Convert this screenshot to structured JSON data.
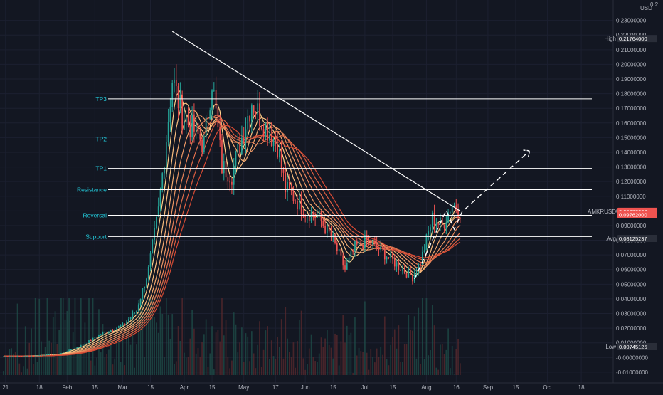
{
  "chart_data": {
    "type": "candlestick",
    "title": "",
    "symbol": "AMKRUSD",
    "currency_label": "USD",
    "y_axis_top_label": "0.2",
    "ylim": [
      -0.012,
      0.241
    ],
    "yticks": [
      -0.01,
      -0.0,
      0.01,
      0.02,
      0.03,
      0.04,
      0.05,
      0.06,
      0.07,
      0.08,
      0.09,
      0.1,
      0.11,
      0.12,
      0.13,
      0.14,
      0.15,
      0.16,
      0.17,
      0.18,
      0.19,
      0.2,
      0.21,
      0.22,
      0.23
    ],
    "ytick_labels": [
      "-0.01000000",
      "-0.00000000",
      "0.01000000",
      "0.02000000",
      "0.03000000",
      "0.04000000",
      "0.05000000",
      "0.06000000",
      "0.07000000",
      "0.08000000",
      "0.09000000",
      "0.10000000",
      "0.11000000",
      "0.12000000",
      "0.13000000",
      "0.14000000",
      "0.15000000",
      "0.16000000",
      "0.17000000",
      "0.18000000",
      "0.19000000",
      "0.20000000",
      "0.21000000",
      "0.22000000",
      "0.23000000"
    ],
    "xaxis": {
      "start": "2020-12-31",
      "end": "2021-10-28",
      "ticks": [
        {
          "date": "2021-01-01",
          "label": "21"
        },
        {
          "date": "2021-01-18",
          "label": "18"
        },
        {
          "date": "2021-02-01",
          "label": "Feb"
        },
        {
          "date": "2021-02-15",
          "label": "15"
        },
        {
          "date": "2021-03-01",
          "label": "Mar"
        },
        {
          "date": "2021-03-15",
          "label": "15"
        },
        {
          "date": "2021-04-01",
          "label": "Apr"
        },
        {
          "date": "2021-04-15",
          "label": "15"
        },
        {
          "date": "2021-05-01",
          "label": "May"
        },
        {
          "date": "2021-05-17",
          "label": "17"
        },
        {
          "date": "2021-06-01",
          "label": "Jun"
        },
        {
          "date": "2021-06-15",
          "label": "15"
        },
        {
          "date": "2021-07-01",
          "label": "Jul"
        },
        {
          "date": "2021-07-15",
          "label": "15"
        },
        {
          "date": "2021-08-01",
          "label": "Aug"
        },
        {
          "date": "2021-08-16",
          "label": "16"
        },
        {
          "date": "2021-09-01",
          "label": "Sep"
        },
        {
          "date": "2021-09-15",
          "label": "15"
        },
        {
          "date": "2021-10-01",
          "label": "Oct"
        },
        {
          "date": "2021-10-18",
          "label": "18"
        }
      ]
    },
    "price_path": [
      {
        "date": "2020-12-31",
        "close": 0.0009
      },
      {
        "date": "2021-01-15",
        "close": 0.0012
      },
      {
        "date": "2021-01-28",
        "close": 0.0025
      },
      {
        "date": "2021-02-08",
        "close": 0.008
      },
      {
        "date": "2021-02-18",
        "close": 0.016
      },
      {
        "date": "2021-03-01",
        "close": 0.022
      },
      {
        "date": "2021-03-08",
        "close": 0.032
      },
      {
        "date": "2021-03-14",
        "close": 0.06
      },
      {
        "date": "2021-03-19",
        "close": 0.1
      },
      {
        "date": "2021-03-23",
        "close": 0.15
      },
      {
        "date": "2021-03-26",
        "close": 0.19
      },
      {
        "date": "2021-03-31",
        "close": 0.165
      },
      {
        "date": "2021-04-06",
        "close": 0.155
      },
      {
        "date": "2021-04-11",
        "close": 0.145
      },
      {
        "date": "2021-04-15",
        "close": 0.19
      },
      {
        "date": "2021-04-20",
        "close": 0.13
      },
      {
        "date": "2021-04-25",
        "close": 0.125
      },
      {
        "date": "2021-04-30",
        "close": 0.15
      },
      {
        "date": "2021-05-05",
        "close": 0.175
      },
      {
        "date": "2021-05-11",
        "close": 0.16
      },
      {
        "date": "2021-05-18",
        "close": 0.145
      },
      {
        "date": "2021-05-22",
        "close": 0.115
      },
      {
        "date": "2021-05-26",
        "close": 0.11
      },
      {
        "date": "2021-06-01",
        "close": 0.1
      },
      {
        "date": "2021-06-08",
        "close": 0.095
      },
      {
        "date": "2021-06-15",
        "close": 0.08
      },
      {
        "date": "2021-06-21",
        "close": 0.06
      },
      {
        "date": "2021-06-26",
        "close": 0.075
      },
      {
        "date": "2021-07-02",
        "close": 0.08
      },
      {
        "date": "2021-07-10",
        "close": 0.072
      },
      {
        "date": "2021-07-20",
        "close": 0.06
      },
      {
        "date": "2021-07-25",
        "close": 0.055
      },
      {
        "date": "2021-07-29",
        "close": 0.065
      },
      {
        "date": "2021-08-01",
        "close": 0.08
      },
      {
        "date": "2021-08-04",
        "close": 0.095
      },
      {
        "date": "2021-08-09",
        "close": 0.09
      },
      {
        "date": "2021-08-14",
        "close": 0.105
      },
      {
        "date": "2021-08-18",
        "close": 0.0998
      }
    ],
    "ribbon_series_count": 8,
    "levels": [
      {
        "name": "TP3",
        "value": 0.1765
      },
      {
        "name": "TP2",
        "value": 0.149
      },
      {
        "name": "TP1",
        "value": 0.129
      },
      {
        "name": "Resistance",
        "value": 0.1145
      },
      {
        "name": "Reversal",
        "value": 0.097
      },
      {
        "name": "Support",
        "value": 0.0825
      }
    ],
    "trendline": {
      "from": {
        "date": "2021-03-26",
        "value": 0.2225
      },
      "to": {
        "date": "2021-08-18",
        "value": 0.1
      }
    },
    "projection_path": [
      {
        "date": "2021-07-26",
        "value": 0.0535
      },
      {
        "date": "2021-08-11",
        "value": 0.1005
      },
      {
        "date": "2021-08-15",
        "value": 0.0875
      },
      {
        "date": "2021-08-19",
        "value": 0.0995
      },
      {
        "date": "2021-09-22",
        "value": 0.141
      }
    ],
    "price_tags": [
      {
        "name": "High",
        "value": 0.21764,
        "label": "0.21764000",
        "color": "#2a2e39",
        "text_color": "#ffffff"
      },
      {
        "name": "AMKRUSD",
        "value": 0.09978,
        "label": "0.09978000",
        "color": "#ef5350",
        "text_color": "#ffffff"
      },
      {
        "name": "",
        "value": 0.09762,
        "label": "0.09762000",
        "color": "#ef5350",
        "text_color": "#ffffff"
      },
      {
        "name": "Avg",
        "value": 0.08125237,
        "label": "0.08125237",
        "color": "#2a2e39",
        "text_color": "#ffffff"
      },
      {
        "name": "Low",
        "value": 0.00745125,
        "label": "0.00745125",
        "color": "#2a2e39",
        "text_color": "#ffffff"
      }
    ],
    "colors": {
      "background": "#131722",
      "up": "#26a69a",
      "down": "#ef5350",
      "level": "#ffffff",
      "level_label": "#22c7d8",
      "ribbon_fast": "#ffd08a",
      "ribbon_slow": "#d64a34"
    }
  }
}
